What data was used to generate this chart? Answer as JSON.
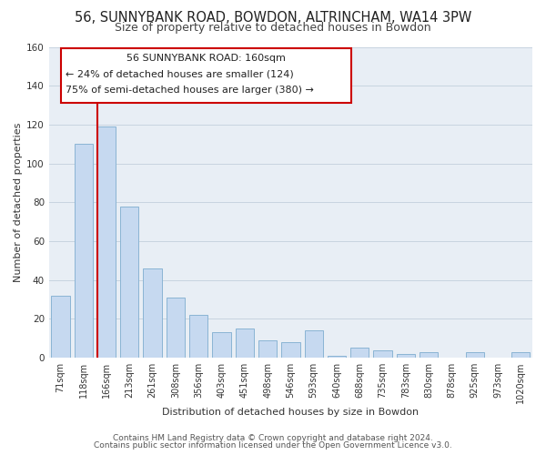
{
  "title": "56, SUNNYBANK ROAD, BOWDON, ALTRINCHAM, WA14 3PW",
  "subtitle": "Size of property relative to detached houses in Bowdon",
  "xlabel": "Distribution of detached houses by size in Bowdon",
  "ylabel": "Number of detached properties",
  "bar_labels": [
    "71sqm",
    "118sqm",
    "166sqm",
    "213sqm",
    "261sqm",
    "308sqm",
    "356sqm",
    "403sqm",
    "451sqm",
    "498sqm",
    "546sqm",
    "593sqm",
    "640sqm",
    "688sqm",
    "735sqm",
    "783sqm",
    "830sqm",
    "878sqm",
    "925sqm",
    "973sqm",
    "1020sqm"
  ],
  "bar_values": [
    32,
    110,
    119,
    78,
    46,
    31,
    22,
    13,
    15,
    9,
    8,
    14,
    1,
    5,
    4,
    2,
    3,
    0,
    3,
    0,
    3
  ],
  "bar_color": "#c6d9f0",
  "bar_edge_color": "#8ab4d4",
  "highlight_line_color": "#cc0000",
  "annotation_text_line1": "56 SUNNYBANK ROAD: 160sqm",
  "annotation_text_line2": "← 24% of detached houses are smaller (124)",
  "annotation_text_line3": "75% of semi-detached houses are larger (380) →",
  "annotation_box_edge_color": "#cc0000",
  "annotation_box_face_color": "#ffffff",
  "ylim": [
    0,
    160
  ],
  "yticks": [
    0,
    20,
    40,
    60,
    80,
    100,
    120,
    140,
    160
  ],
  "footnote1": "Contains HM Land Registry data © Crown copyright and database right 2024.",
  "footnote2": "Contains public sector information licensed under the Open Government Licence v3.0.",
  "background_color": "#ffffff",
  "axes_background_color": "#e8eef5",
  "grid_color": "#c8d4e0",
  "title_fontsize": 10.5,
  "subtitle_fontsize": 9,
  "tick_fontsize": 7,
  "ylabel_fontsize": 8,
  "xlabel_fontsize": 8,
  "footnote_fontsize": 6.5
}
